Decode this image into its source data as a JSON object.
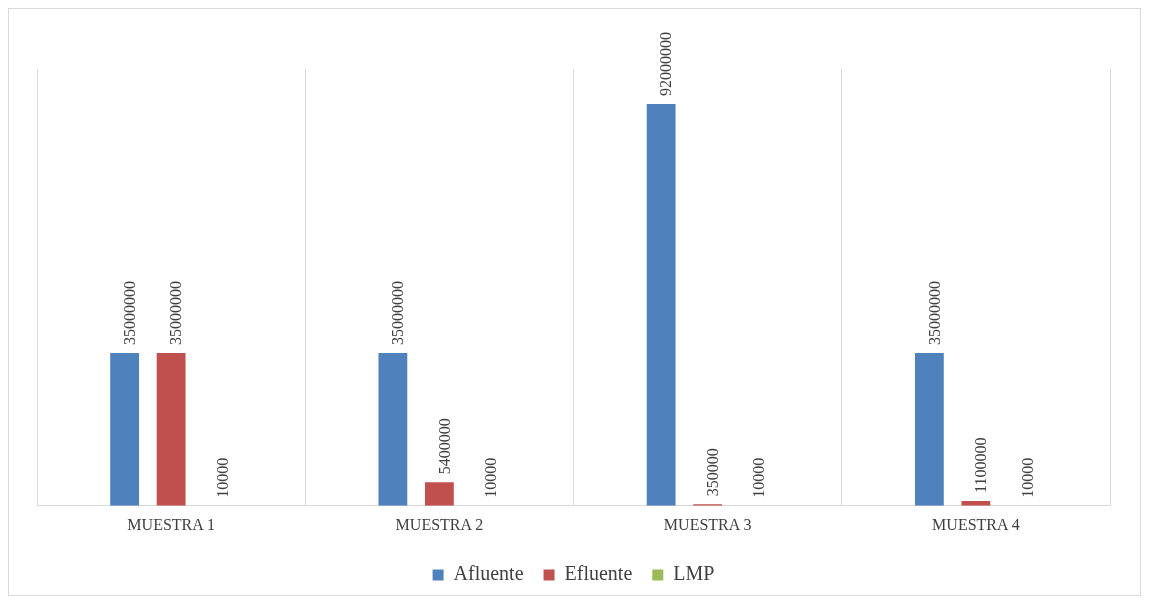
{
  "chart_data": {
    "type": "bar",
    "categories": [
      "MUESTRA 1",
      "MUESTRA 2",
      "MUESTRA 3",
      "MUESTRA 4"
    ],
    "series": [
      {
        "name": "Afluente",
        "color": "#4f81bd",
        "values": [
          35000000,
          35000000,
          92000000,
          35000000
        ]
      },
      {
        "name": "Efluente",
        "color": "#c0504d",
        "values": [
          35000000,
          5400000,
          350000,
          1100000
        ]
      },
      {
        "name": "LMP",
        "color": "#9bbb59",
        "values": [
          10000,
          10000,
          10000,
          10000
        ]
      }
    ],
    "ylim": [
      0,
      100000000
    ],
    "tick_labels": "x",
    "grid": "x",
    "legend": "bottom",
    "data_labels": true
  }
}
